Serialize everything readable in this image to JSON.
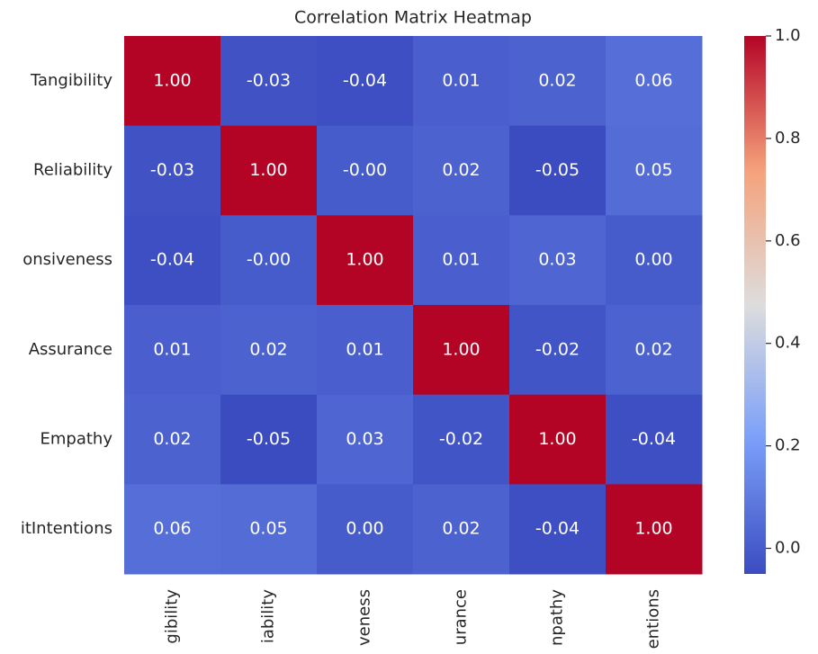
{
  "chart_data": {
    "type": "heatmap",
    "title": "Correlation Matrix Heatmap",
    "x_categories": [
      "gibility",
      "iability",
      "veness",
      "urance",
      "npathy",
      "entions"
    ],
    "y_categories": [
      "Tangibility",
      "Reliability",
      "onsiveness",
      "Assurance",
      "Empathy",
      "itIntentions"
    ],
    "values": [
      [
        1,
        -0.03,
        -0.04,
        0.01,
        0.02,
        0.06
      ],
      [
        -0.03,
        1,
        -0.0,
        0.02,
        -0.05,
        0.05
      ],
      [
        -0.04,
        -0.0,
        1,
        0.01,
        0.03,
        0.0
      ],
      [
        0.01,
        0.02,
        0.01,
        1,
        -0.02,
        0.02
      ],
      [
        0.02,
        -0.05,
        0.03,
        -0.02,
        1,
        -0.04
      ],
      [
        0.06,
        0.05,
        0.0,
        0.02,
        -0.04,
        1
      ]
    ],
    "value_labels": [
      [
        "1.00",
        "-0.03",
        "-0.04",
        "0.01",
        "0.02",
        "0.06"
      ],
      [
        "-0.03",
        "1.00",
        "-0.00",
        "0.02",
        "-0.05",
        "0.05"
      ],
      [
        "-0.04",
        "-0.00",
        "1.00",
        "0.01",
        "0.03",
        "0.00"
      ],
      [
        "0.01",
        "0.02",
        "0.01",
        "1.00",
        "-0.02",
        "0.02"
      ],
      [
        "0.02",
        "-0.05",
        "0.03",
        "-0.02",
        "1.00",
        "-0.04"
      ],
      [
        "0.06",
        "0.05",
        "0.00",
        "0.02",
        "-0.04",
        "1.00"
      ]
    ],
    "colormap": [
      "#3b4cc0",
      "#7b9ff9",
      "#dddddd",
      "#f5a27b",
      "#b40426"
    ],
    "zlim": [
      -0.05,
      1
    ],
    "zticks": [
      {
        "value": 0,
        "label": "0.0"
      },
      {
        "value": 0.2,
        "label": "0.2"
      },
      {
        "value": 0.4,
        "label": "0.4"
      },
      {
        "value": 0.6,
        "label": "0.6"
      },
      {
        "value": 0.8,
        "label": "0.8"
      },
      {
        "value": 1,
        "label": "1.0"
      }
    ]
  }
}
